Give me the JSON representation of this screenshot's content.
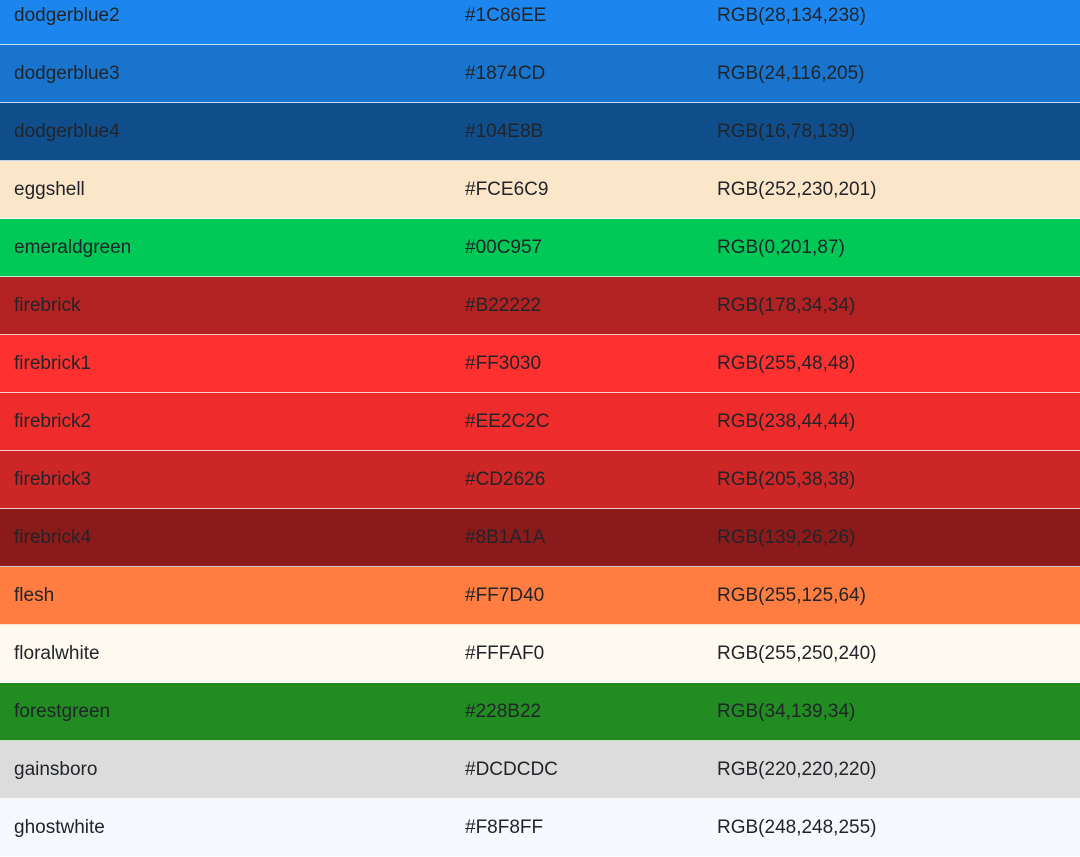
{
  "table": {
    "rows": [
      [
        "dodgerblue2",
        "#1C86EE",
        "RGB(28,134,238)"
      ],
      [
        "dodgerblue3",
        "#1874CD",
        "RGB(24,116,205)"
      ],
      [
        "dodgerblue4",
        "#104E8B",
        "RGB(16,78,139)"
      ],
      [
        "eggshell",
        "#FCE6C9",
        "RGB(252,230,201)"
      ],
      [
        "emeraldgreen",
        "#00C957",
        "RGB(0,201,87)"
      ],
      [
        "firebrick",
        "#B22222",
        "RGB(178,34,34)"
      ],
      [
        "firebrick1",
        "#FF3030",
        "RGB(255,48,48)"
      ],
      [
        "firebrick2",
        "#EE2C2C",
        "RGB(238,44,44)"
      ],
      [
        "firebrick3",
        "#CD2626",
        "RGB(205,38,38)"
      ],
      [
        "firebrick4",
        "#8B1A1A",
        "RGB(139,26,26)"
      ],
      [
        "flesh",
        "#FF7D40",
        "RGB(255,125,64)"
      ],
      [
        "floralwhite",
        "#FFFAF0",
        "RGB(255,250,240)"
      ],
      [
        "forestgreen",
        "#228B22",
        "RGB(34,139,34)"
      ],
      [
        "gainsboro",
        "#DCDCDC",
        "RGB(220,220,220)"
      ],
      [
        "ghostwhite",
        "#F8F8FF",
        "RGB(248,248,255)"
      ]
    ]
  }
}
